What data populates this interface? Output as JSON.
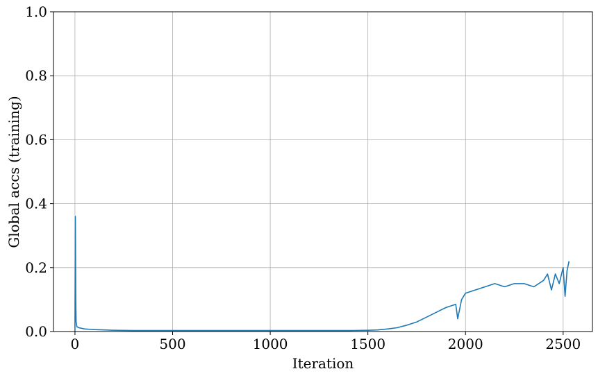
{
  "chart_data": {
    "type": "line",
    "title": "",
    "xlabel": "Iteration",
    "ylabel": "Global accs (training)",
    "xlim": [
      -110,
      2650
    ],
    "ylim": [
      0.0,
      1.0
    ],
    "xticks": [
      0,
      500,
      1000,
      1500,
      2000,
      2500
    ],
    "yticks": [
      0.0,
      0.2,
      0.4,
      0.6,
      0.8,
      1.0
    ],
    "xtick_labels": [
      "0",
      "500",
      "1000",
      "1500",
      "2000",
      "2500"
    ],
    "ytick_labels": [
      "0.0",
      "0.2",
      "0.4",
      "0.6",
      "0.8",
      "1.0"
    ],
    "grid": true,
    "series": [
      {
        "color": "#1f77b4",
        "x": [
          0,
          2,
          4,
          6,
          10,
          20,
          50,
          100,
          200,
          300,
          500,
          700,
          1000,
          1200,
          1400,
          1500,
          1550,
          1600,
          1650,
          1700,
          1750,
          1800,
          1850,
          1900,
          1950,
          1960,
          1980,
          2000,
          2050,
          2100,
          2150,
          2200,
          2250,
          2300,
          2350,
          2400,
          2420,
          2440,
          2460,
          2480,
          2500,
          2510,
          2520,
          2530
        ],
        "y": [
          0.0,
          0.36,
          0.1,
          0.03,
          0.015,
          0.012,
          0.008,
          0.006,
          0.004,
          0.003,
          0.003,
          0.003,
          0.003,
          0.003,
          0.003,
          0.004,
          0.005,
          0.008,
          0.012,
          0.02,
          0.03,
          0.045,
          0.06,
          0.075,
          0.085,
          0.04,
          0.1,
          0.12,
          0.13,
          0.14,
          0.15,
          0.14,
          0.15,
          0.15,
          0.14,
          0.16,
          0.18,
          0.13,
          0.18,
          0.15,
          0.2,
          0.11,
          0.19,
          0.22
        ]
      }
    ]
  }
}
